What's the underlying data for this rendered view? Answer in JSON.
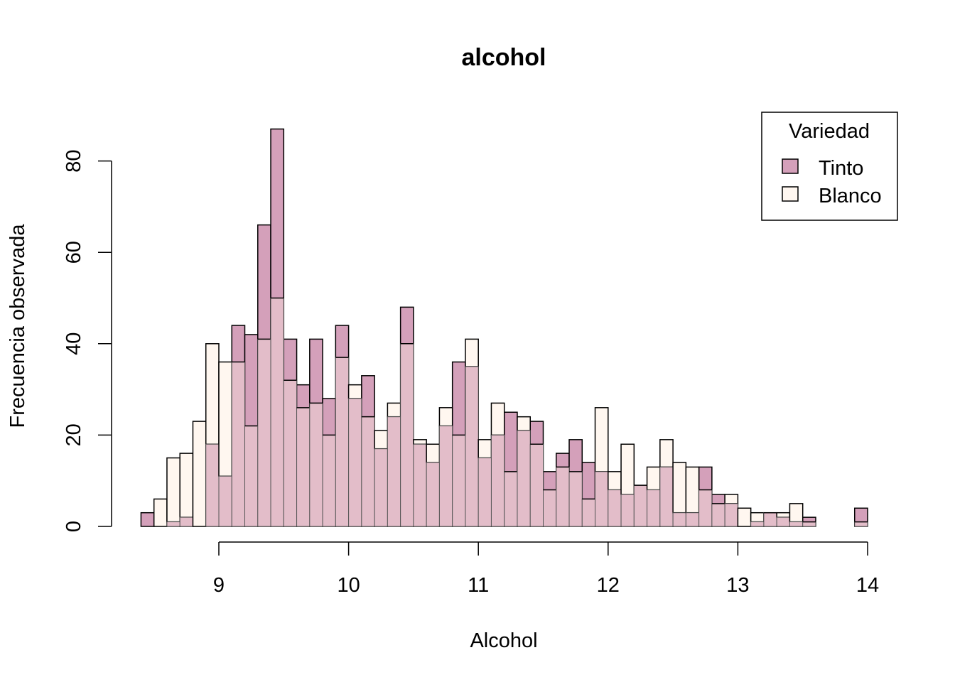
{
  "chart_data": {
    "type": "bar",
    "title": "alcohol",
    "xlabel": "Alcohol",
    "ylabel": "Frecuencia observada",
    "xlim": [
      9,
      14
    ],
    "ylim": [
      0,
      80
    ],
    "x_ticks": [
      9,
      10,
      11,
      12,
      13,
      14
    ],
    "y_ticks": [
      0,
      20,
      40,
      60,
      80
    ],
    "bin_width": 0.1,
    "bins_start": [
      8.4,
      8.5,
      8.6,
      8.7,
      8.8,
      8.9,
      9.0,
      9.1,
      9.2,
      9.3,
      9.4,
      9.5,
      9.6,
      9.7,
      9.8,
      9.9,
      10.0,
      10.1,
      10.2,
      10.3,
      10.4,
      10.5,
      10.6,
      10.7,
      10.8,
      10.9,
      11.0,
      11.1,
      11.2,
      11.3,
      11.4,
      11.5,
      11.6,
      11.7,
      11.8,
      11.9,
      12.0,
      12.1,
      12.2,
      12.3,
      12.4,
      12.5,
      12.6,
      12.7,
      12.8,
      12.9,
      13.0,
      13.1,
      13.2,
      13.3,
      13.4,
      13.5,
      13.6,
      13.7,
      13.8,
      13.9
    ],
    "series": [
      {
        "name": "Tinto",
        "color": "#D4A0BA",
        "values": [
          3,
          0,
          1,
          2,
          0,
          18,
          11,
          44,
          42,
          66,
          87,
          41,
          31,
          41,
          28,
          44,
          28,
          33,
          17,
          24,
          48,
          18,
          14,
          22,
          36,
          35,
          15,
          20,
          25,
          21,
          23,
          12,
          16,
          19,
          14,
          12,
          8,
          7,
          9,
          8,
          13,
          3,
          3,
          13,
          7,
          5,
          0,
          1,
          3,
          2,
          1,
          2,
          0,
          0,
          0,
          4
        ]
      },
      {
        "name": "Blanco",
        "color": "#FFF7F0",
        "values": [
          0,
          6,
          15,
          16,
          23,
          40,
          36,
          36,
          22,
          41,
          50,
          32,
          26,
          27,
          20,
          37,
          31,
          24,
          21,
          27,
          40,
          19,
          18,
          26,
          20,
          41,
          19,
          27,
          12,
          24,
          18,
          8,
          13,
          12,
          6,
          26,
          12,
          18,
          9,
          13,
          19,
          14,
          13,
          8,
          5,
          7,
          4,
          3,
          3,
          3,
          5,
          1,
          0,
          0,
          0,
          1
        ]
      }
    ],
    "overlap_color": "#E3BDC9",
    "legend": {
      "title": "Variedad",
      "position": "top-right",
      "entries": [
        "Tinto",
        "Blanco"
      ]
    }
  }
}
